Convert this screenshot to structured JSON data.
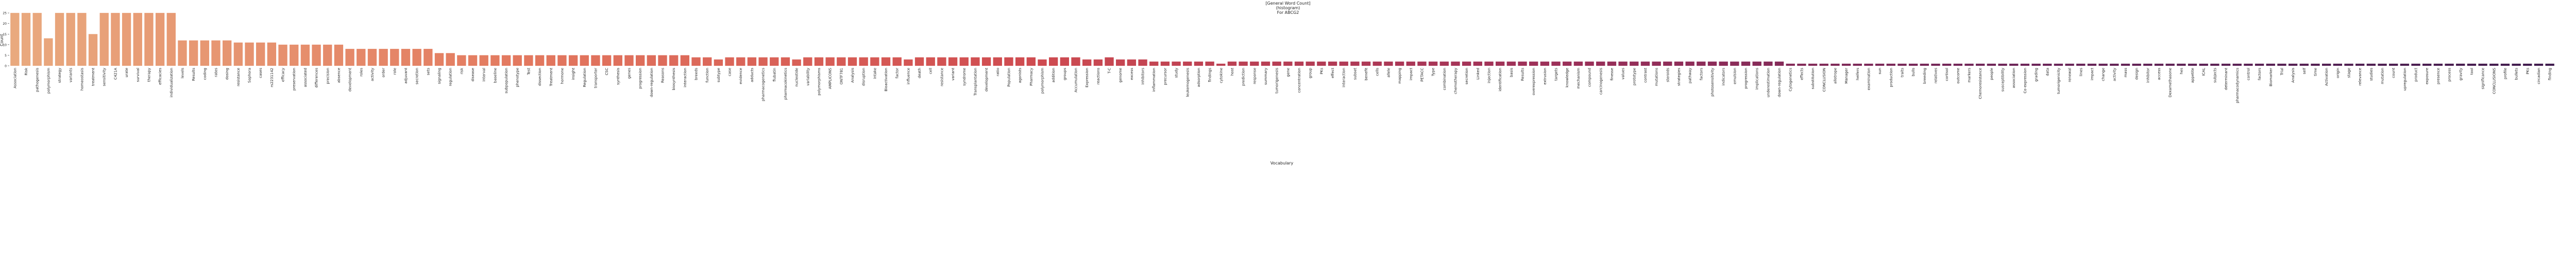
{
  "chart_data": {
    "type": "bar",
    "title": [
      "[General Word Count]",
      "(histogram)",
      "For ABCG2"
    ],
    "xlabel": "Vocabulary",
    "ylabel": "Count",
    "ylim": [
      0,
      26.25
    ],
    "yticks": [
      0,
      5,
      10,
      15,
      20,
      25
    ],
    "palette": [
      "#e9a97e",
      "#e3795f",
      "#cf4b50",
      "#9e3159",
      "#6a2458",
      "#3f1b4d"
    ],
    "categories": [
      "Association",
      "Risk",
      "pathogenesis",
      "polymorphism",
      "strategy",
      "variants",
      "homeostasis",
      "treatment",
      "sensitivity",
      "C421A",
      "urate",
      "survival",
      "therapy",
      "efficacies",
      "individualization",
      "levels",
      "Results",
      "coding",
      "rates",
      "dosing",
      "resistance",
      "Sophora",
      "cases",
      "rs2231142",
      "efficacy",
      "preservation",
      "associated",
      "differences",
      "precision",
      "absence",
      "development",
      "roles",
      "activity",
      "order",
      "role",
      "adjuvant",
      "secretion",
      "sets",
      "signaling",
      "regulation",
      "risk",
      "disease",
      "interval",
      "baseline",
      "subpopulation",
      "phenotype",
      "Test",
      "dissection",
      "Treatment",
      "hormone",
      "insight",
      "Regulation",
      "transporter",
      "CSC",
      "synthesis",
      "genes",
      "progression",
      "down-regulation",
      "Reasons",
      "biosynthesis",
      "interaction",
      "breeds",
      "function",
      "subtype",
      "case",
      "evidence",
      "adducts",
      "pharmacogenetics",
      "flubatin",
      "pharmacokinetics",
      "nucleotide",
      "variability",
      "polymorphisms",
      "AMPLICONS",
      "ONTF781",
      "Analysis",
      "disruption",
      "intake",
      "Bioactivation",
      "factor",
      "influence",
      "death",
      "cell",
      "resistance",
      "variant",
      "syndrome",
      "Transplantation",
      "development",
      "ratio",
      "Population",
      "agonists",
      "Pharmacy",
      "polymorphism",
      "addition",
      "groups",
      "Accumulation",
      "Expression",
      "reactions",
      "T-C",
      "genome",
      "excess",
      "inhibitors",
      "inflammation",
      "precursor",
      "study",
      "leukemogenesis",
      "adsorption",
      "findings",
      "cytokine",
      "host",
      "prediction",
      "response",
      "summary",
      "tumorigenesis",
      "gene",
      "concentration",
      "group",
      "PKs",
      "effect",
      "interaction",
      "subset",
      "benefit",
      "cells",
      "allele",
      "mapping",
      "impact",
      "PETACC",
      "Type",
      "combination",
      "chemotherapy",
      "secretion",
      "Linked",
      "injection",
      "identification",
      "basis",
      "Results",
      "overexpression",
      "extrusion",
      "targets",
      "knowledge",
      "mechanism",
      "compound",
      "carcinogenesis",
      "finesse",
      "values",
      "prototype",
      "contrast",
      "mutations",
      "steroids",
      "strategies",
      "pathway",
      "factors",
      "photosensitivity",
      "indicators",
      "emulsion",
      "progression",
      "implications",
      "underestimation",
      "down-regulation",
      "Cytogenetics",
      "effects",
      "substitution",
      "CONCLUSION",
      "allotrope",
      "Manager",
      "heifers",
      "examination",
      "sun",
      "production",
      "traits",
      "bulls",
      "breeding",
      "relatives",
      "cortisol",
      "outcome",
      "markers",
      "Chemoresistance",
      "people",
      "susceptibility",
      "association",
      "Co-expression",
      "grading",
      "data",
      "tumorigenicity",
      "renewal",
      "lines",
      "impact",
      "change",
      "activity",
      "mass",
      "design",
      "inhibitor",
      "access",
      "Dexamethasone",
      "hes",
      "appetite",
      "ICAL",
      "subjects",
      "determinant",
      "pharmacodynamics",
      "control",
      "factors",
      "Biomarker",
      "Trial",
      "Analysis",
      "self",
      "time",
      "Activation",
      "origin",
      "stage",
      "relevance",
      "studies",
      "mutation",
      "count",
      "upregulation",
      "product",
      "exposure",
      "presence",
      "process",
      "gravity",
      "tool",
      "significance",
      "CONCLUSIONS",
      "profile",
      "bullets",
      "PKs",
      "circadian",
      "finding"
    ],
    "values": [
      25,
      25,
      25,
      13,
      25,
      25,
      25,
      15,
      25,
      25,
      25,
      25,
      25,
      25,
      25,
      12,
      12,
      12,
      12,
      12,
      11,
      11,
      11,
      11,
      10,
      10,
      10,
      10,
      10,
      10,
      8,
      8,
      8,
      8,
      8,
      8,
      8,
      8,
      6,
      6,
      5,
      5,
      5,
      5,
      5,
      5,
      5,
      5,
      5,
      5,
      5,
      5,
      5,
      5,
      5,
      5,
      5,
      5,
      5,
      5,
      5,
      4,
      4,
      3,
      4,
      4,
      4,
      4,
      4,
      4,
      3,
      4,
      4,
      4,
      4,
      4,
      4,
      4,
      4,
      4,
      3,
      4,
      4,
      4,
      4,
      4,
      4,
      4,
      4,
      4,
      4,
      4,
      3,
      4,
      4,
      4,
      3,
      3,
      4,
      3,
      3,
      3,
      2,
      2,
      2,
      2,
      2,
      2,
      1,
      2,
      2,
      2,
      2,
      2,
      2,
      2,
      2,
      2,
      2,
      2,
      2,
      2,
      2,
      2,
      2,
      2,
      2,
      2,
      2,
      2,
      2,
      2,
      2,
      2,
      2,
      2,
      2,
      2,
      2,
      2,
      2,
      2,
      2,
      2,
      2,
      2,
      2,
      2,
      2,
      2,
      2,
      2,
      2,
      2,
      2,
      2,
      2,
      2,
      2,
      1,
      1,
      1,
      1,
      1,
      1,
      1,
      1,
      1,
      1,
      1,
      1,
      1,
      1,
      1,
      1,
      1,
      1,
      1,
      1,
      1,
      1,
      1,
      1,
      1,
      1,
      1,
      1,
      1,
      1,
      1,
      1,
      1,
      1,
      1,
      1,
      1,
      1,
      1,
      1,
      1,
      1,
      1,
      1,
      1,
      1,
      1,
      1,
      1,
      1,
      1,
      1,
      1,
      1,
      1,
      1,
      1,
      1,
      1,
      1,
      1,
      1,
      1,
      1,
      1,
      1,
      1,
      1,
      1
    ]
  }
}
